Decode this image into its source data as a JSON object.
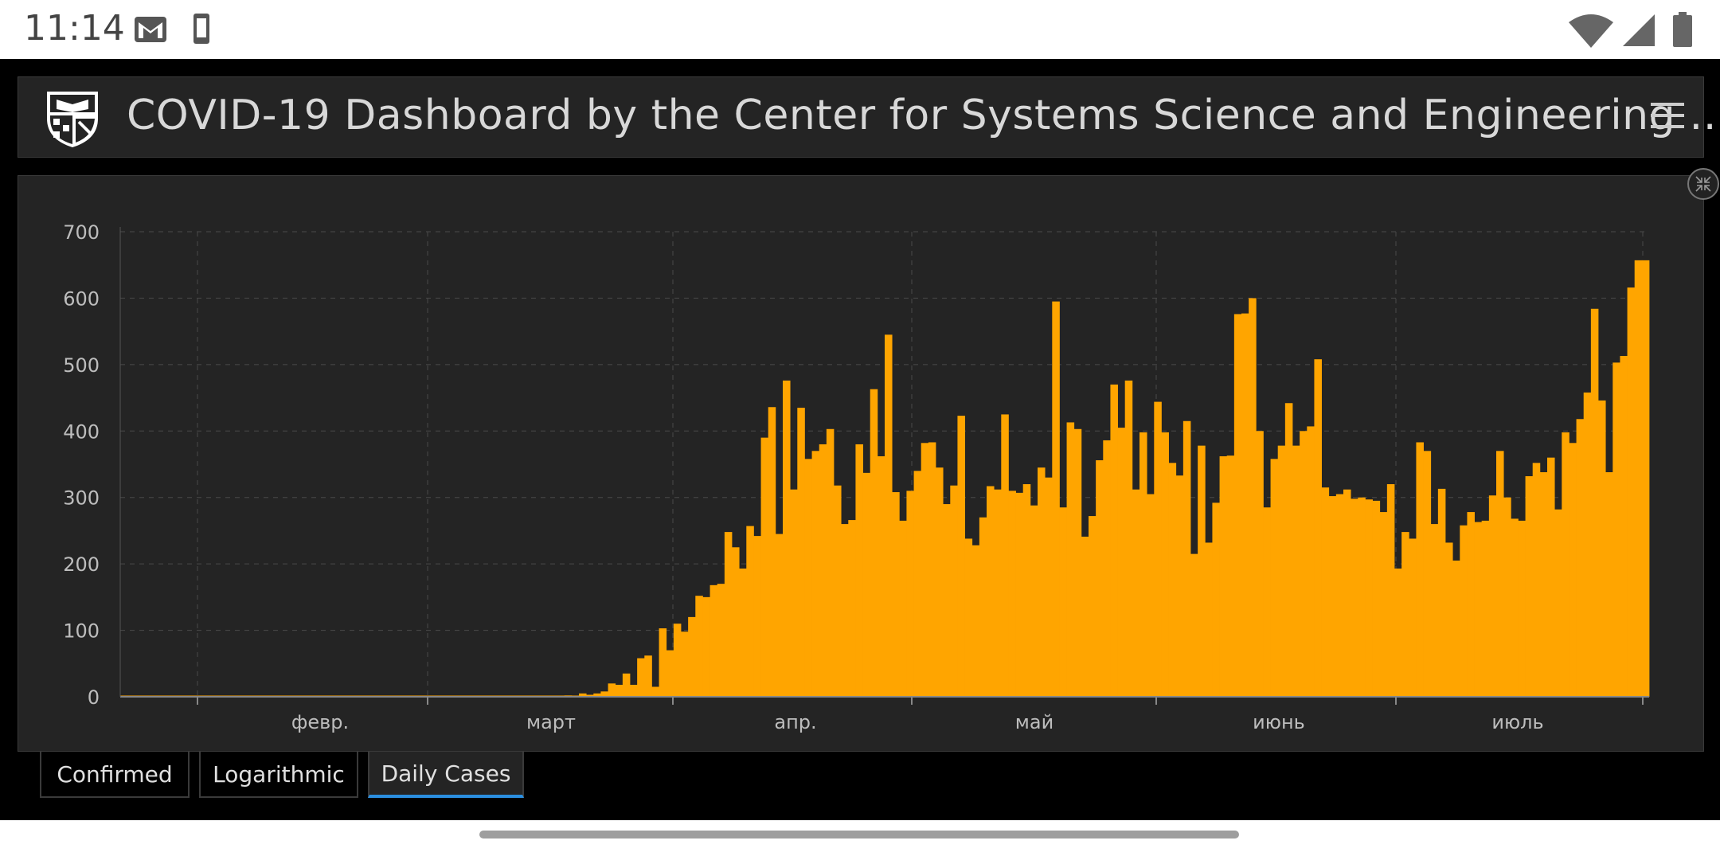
{
  "status_bar": {
    "time": "11:14",
    "icons": [
      "gmail-icon",
      "phone-icon",
      "wifi-icon",
      "signal-icon",
      "battery-icon"
    ]
  },
  "header": {
    "title": "COVID-19 Dashboard by the Center for Systems Science and Engineering …",
    "logo": "jhu-shield-logo",
    "menu_icon": "hamburger-menu-icon"
  },
  "tabs": [
    {
      "label": "Confirmed",
      "active": false
    },
    {
      "label": "Logarithmic",
      "active": false
    },
    {
      "label": "Daily Cases",
      "active": true
    }
  ],
  "colors": {
    "bar": "#ffa500",
    "panel_bg": "#242424",
    "active_tab_underline": "#2b8fe0"
  },
  "chart_data": {
    "type": "bar",
    "ylim": [
      0,
      700
    ],
    "yticks": [
      0,
      100,
      200,
      300,
      400,
      500,
      600,
      700
    ],
    "x_month_labels": [
      "февр.",
      "март",
      "апр.",
      "май",
      "июнь",
      "июль"
    ],
    "grid": true,
    "values": [
      0,
      0,
      0,
      0,
      0,
      0,
      0,
      0,
      0,
      0,
      0,
      0,
      0,
      0,
      0,
      0,
      0,
      0,
      0,
      0,
      0,
      0,
      0,
      0,
      0,
      0,
      0,
      0,
      0,
      0,
      0,
      0,
      0,
      0,
      0,
      0,
      0,
      0,
      0,
      0,
      0,
      0,
      0,
      0,
      0,
      0,
      0,
      0,
      0,
      0,
      0,
      0,
      0,
      0,
      0,
      0,
      0,
      0,
      0,
      0,
      0,
      2,
      0,
      5,
      3,
      5,
      8,
      20,
      18,
      35,
      18,
      58,
      62,
      15,
      103,
      70,
      110,
      98,
      120,
      152,
      150,
      168,
      170,
      248,
      225,
      193,
      257,
      242,
      390,
      436,
      245,
      476,
      312,
      435,
      358,
      370,
      380,
      403,
      318,
      260,
      266,
      380,
      337,
      463,
      362,
      545,
      308,
      265,
      310,
      340,
      382,
      383,
      345,
      290,
      318,
      423,
      238,
      228,
      270,
      317,
      312,
      425,
      310,
      307,
      320,
      288,
      345,
      330,
      595,
      285,
      413,
      403,
      241,
      272,
      356,
      386,
      470,
      405,
      476,
      312,
      398,
      305,
      444,
      398,
      352,
      333,
      415,
      215,
      378,
      232,
      292,
      362,
      363,
      576,
      577,
      600,
      400,
      285,
      358,
      378,
      442,
      378,
      400,
      407,
      508,
      315,
      302,
      305,
      312,
      298,
      300,
      297,
      295,
      278,
      320,
      193,
      248,
      238,
      383,
      370,
      260,
      313,
      232,
      205,
      258,
      278,
      263,
      265,
      303,
      370,
      300,
      268,
      265,
      332,
      352,
      338,
      360,
      282,
      398,
      382,
      418,
      458,
      584,
      446,
      338,
      503,
      513,
      616,
      657,
      657
    ]
  }
}
